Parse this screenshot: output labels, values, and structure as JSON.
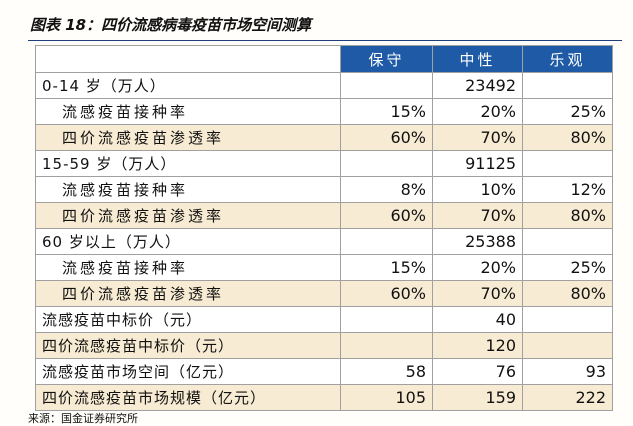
{
  "header": {
    "title": "图表 18：四价流感病毒疫苗市场空间测算"
  },
  "table": {
    "columns": [
      "保守",
      "中性",
      "乐观"
    ],
    "rows": [
      {
        "label": "0-14 岁（万人）",
        "cells": [
          null,
          "23492",
          null
        ],
        "indent": false,
        "highlight": false
      },
      {
        "label": "流感疫苗接种率",
        "cells": [
          "15%",
          "20%",
          "25%"
        ],
        "indent": true,
        "highlight": false
      },
      {
        "label": "四价流感疫苗渗透率",
        "cells": [
          "60%",
          "70%",
          "80%"
        ],
        "indent": true,
        "highlight": true
      },
      {
        "label": "15-59 岁（万人）",
        "cells": [
          null,
          "91125",
          null
        ],
        "indent": false,
        "highlight": false
      },
      {
        "label": "流感疫苗接种率",
        "cells": [
          "8%",
          "10%",
          "12%"
        ],
        "indent": true,
        "highlight": false
      },
      {
        "label": "四价流感疫苗渗透率",
        "cells": [
          "60%",
          "70%",
          "80%"
        ],
        "indent": true,
        "highlight": true
      },
      {
        "label": "60 岁以上（万人）",
        "cells": [
          null,
          "25388",
          null
        ],
        "indent": false,
        "highlight": false
      },
      {
        "label": "流感疫苗接种率",
        "cells": [
          "15%",
          "20%",
          "25%"
        ],
        "indent": true,
        "highlight": false
      },
      {
        "label": "四价流感疫苗渗透率",
        "cells": [
          "60%",
          "70%",
          "80%"
        ],
        "indent": true,
        "highlight": true
      },
      {
        "label": "流感疫苗中标价（元）",
        "cells": [
          null,
          "40",
          null
        ],
        "indent": false,
        "highlight": false
      },
      {
        "label": "四价流感疫苗中标价（元）",
        "cells": [
          null,
          "120",
          null
        ],
        "indent": false,
        "highlight": true
      },
      {
        "label": "流感疫苗市场空间（亿元）",
        "cells": [
          "58",
          "76",
          "93"
        ],
        "indent": false,
        "highlight": false
      },
      {
        "label": "四价流感疫苗市场规模（亿元）",
        "cells": [
          "105",
          "159",
          "222"
        ],
        "indent": false,
        "highlight": true
      }
    ]
  },
  "footer": {
    "source": "来源：国金证券研究所"
  }
}
